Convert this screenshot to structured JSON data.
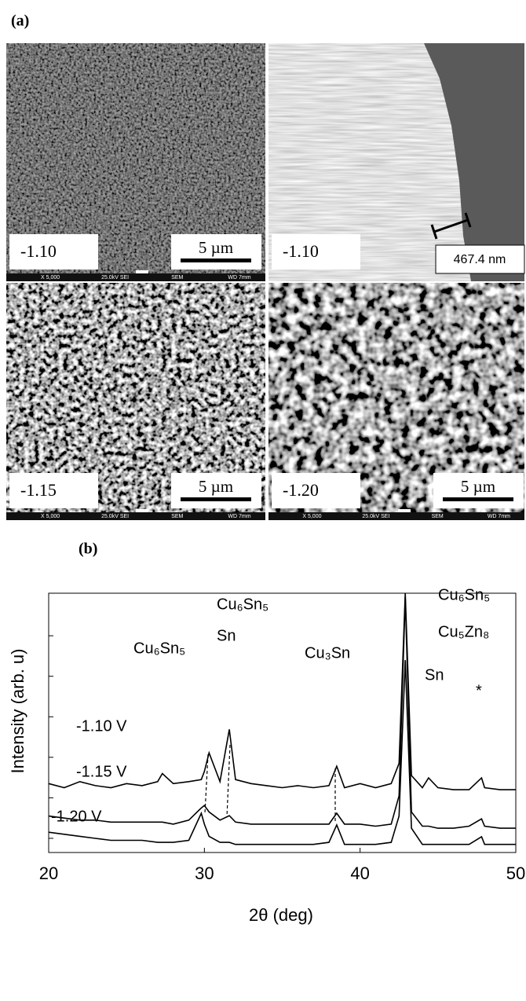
{
  "panel_a": {
    "label": "(a)",
    "images": [
      {
        "label": "-1.10",
        "scale_bar": "5 µm",
        "footer": [
          "X 5,000",
          "25.0kV SEI",
          "SEM",
          "WD 7mm"
        ]
      },
      {
        "label": "-1.10",
        "scale_bar": "467.4 nm"
      },
      {
        "label": "-1.15",
        "scale_bar": "5 µm",
        "footer": [
          "X 5,000",
          "25.0kV SEI",
          "SEM",
          "WD 7mm"
        ]
      },
      {
        "label": "-1.20",
        "scale_bar": "5 µm",
        "footer": [
          "X 5,000",
          "25.0kV SEI",
          "SEM",
          "WD 7mm"
        ]
      }
    ]
  },
  "chart_data": {
    "type": "line",
    "panel_label": "(b)",
    "x_label": "2θ (deg)",
    "y_label": "Intensity (arb. u)",
    "x": [
      20,
      21,
      22,
      23,
      24,
      25,
      26,
      27,
      27.3,
      28,
      29,
      29.8,
      30,
      30.3,
      31,
      31.6,
      32,
      33,
      34,
      35,
      36,
      37,
      38,
      38.5,
      39,
      40,
      41,
      42,
      42.5,
      42.9,
      43.3,
      44,
      44.4,
      45,
      46,
      47,
      47.8,
      48,
      49,
      50
    ],
    "series": [
      {
        "name": "-1.10 V",
        "color": "#000000",
        "values": [
          1.7,
          1.6,
          1.75,
          1.65,
          1.6,
          1.7,
          1.65,
          1.75,
          1.95,
          1.7,
          1.75,
          1.8,
          2.0,
          2.46,
          1.75,
          3.04,
          1.8,
          1.7,
          1.65,
          1.6,
          1.65,
          1.6,
          1.65,
          2.13,
          1.6,
          1.7,
          1.6,
          1.7,
          2.2,
          6.4,
          1.9,
          1.6,
          1.84,
          1.6,
          1.55,
          1.55,
          1.84,
          1.6,
          1.55,
          1.55
        ]
      },
      {
        "name": "-1.15 V",
        "color": "#000000",
        "values": [
          0.9,
          0.85,
          0.8,
          0.8,
          0.75,
          0.75,
          0.75,
          0.75,
          0.75,
          0.7,
          0.8,
          1.1,
          1.16,
          1.0,
          0.8,
          0.91,
          0.75,
          0.7,
          0.7,
          0.7,
          0.7,
          0.7,
          0.7,
          0.97,
          0.7,
          0.7,
          0.65,
          0.7,
          1.4,
          6.3,
          1.0,
          0.65,
          0.65,
          0.6,
          0.6,
          0.65,
          0.83,
          0.65,
          0.6,
          0.6
        ]
      },
      {
        "name": "-1.20 V",
        "color": "#000000",
        "values": [
          0.5,
          0.45,
          0.4,
          0.35,
          0.3,
          0.3,
          0.3,
          0.25,
          0.25,
          0.25,
          0.3,
          0.97,
          0.7,
          0.4,
          0.25,
          0.25,
          0.2,
          0.2,
          0.2,
          0.2,
          0.2,
          0.2,
          0.25,
          0.68,
          0.2,
          0.2,
          0.2,
          0.25,
          0.9,
          4.75,
          0.6,
          0.2,
          0.2,
          0.2,
          0.2,
          0.2,
          0.39,
          0.2,
          0.2,
          0.2
        ]
      }
    ],
    "xlim": [
      20,
      50
    ],
    "xticks": [
      20,
      30,
      40,
      50
    ],
    "ylim": [
      0,
      6.4
    ],
    "yticks": [
      0.35,
      1.35,
      2.35,
      3.35,
      4.35,
      5.35
    ],
    "annotations": [
      "Cu₆Sn₅",
      "Cu₆Sn₅",
      "Sn",
      "Cu₃Sn",
      "Cu₆Sn₅",
      "Cu₅Zn₈",
      "Sn",
      "*"
    ]
  }
}
